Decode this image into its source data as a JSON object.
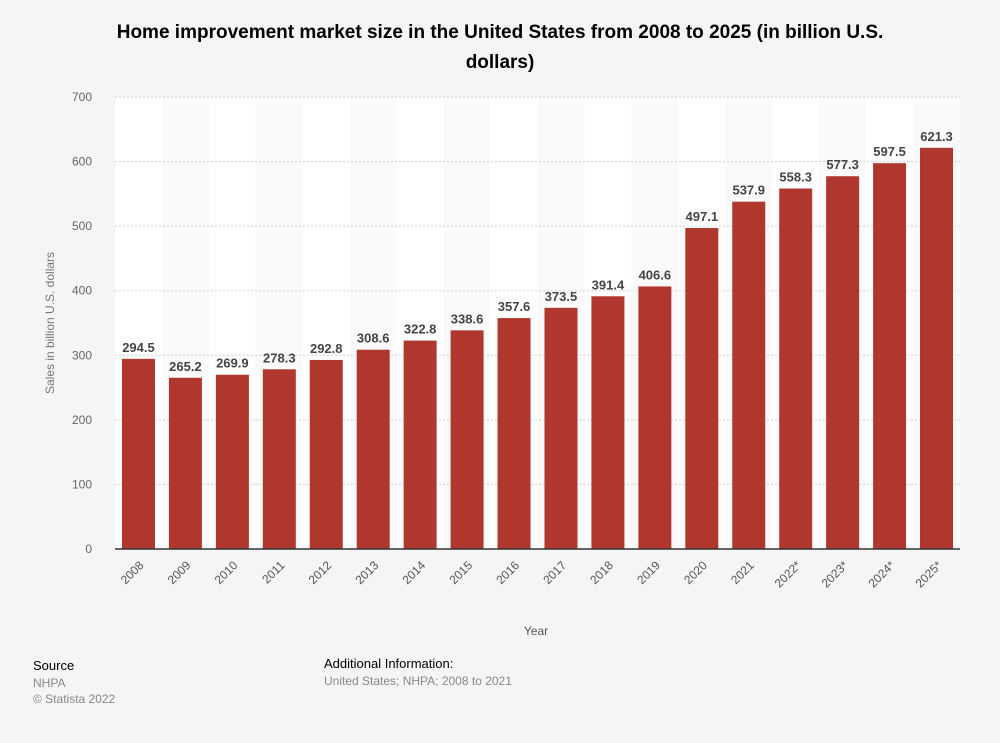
{
  "chart_data": {
    "type": "bar",
    "title": "Home improvement market size in the United States from 2008 to 2025 (in billion U.S. dollars)",
    "xlabel": "Year",
    "ylabel": "Sales in billion U.S. dollars",
    "ylim": [
      0,
      700
    ],
    "yticks": [
      0,
      100,
      200,
      300,
      400,
      500,
      600,
      700
    ],
    "grid": true,
    "bar_color": "#b0372d",
    "categories": [
      "2008",
      "2009",
      "2010",
      "2011",
      "2012",
      "2013",
      "2014",
      "2015",
      "2016",
      "2017",
      "2018",
      "2019",
      "2020",
      "2021",
      "2022*",
      "2023*",
      "2024*",
      "2025*"
    ],
    "values": [
      294.5,
      265.2,
      269.9,
      278.3,
      292.8,
      308.6,
      322.8,
      338.6,
      357.6,
      373.5,
      391.4,
      406.6,
      497.1,
      537.9,
      558.3,
      577.3,
      597.5,
      621.3
    ]
  },
  "footer": {
    "source_heading": "Source",
    "source": "NHPA",
    "copyright": "© Statista 2022",
    "additional_heading": "Additional Information:",
    "additional": "United States; NHPA; 2008 to 2021"
  }
}
